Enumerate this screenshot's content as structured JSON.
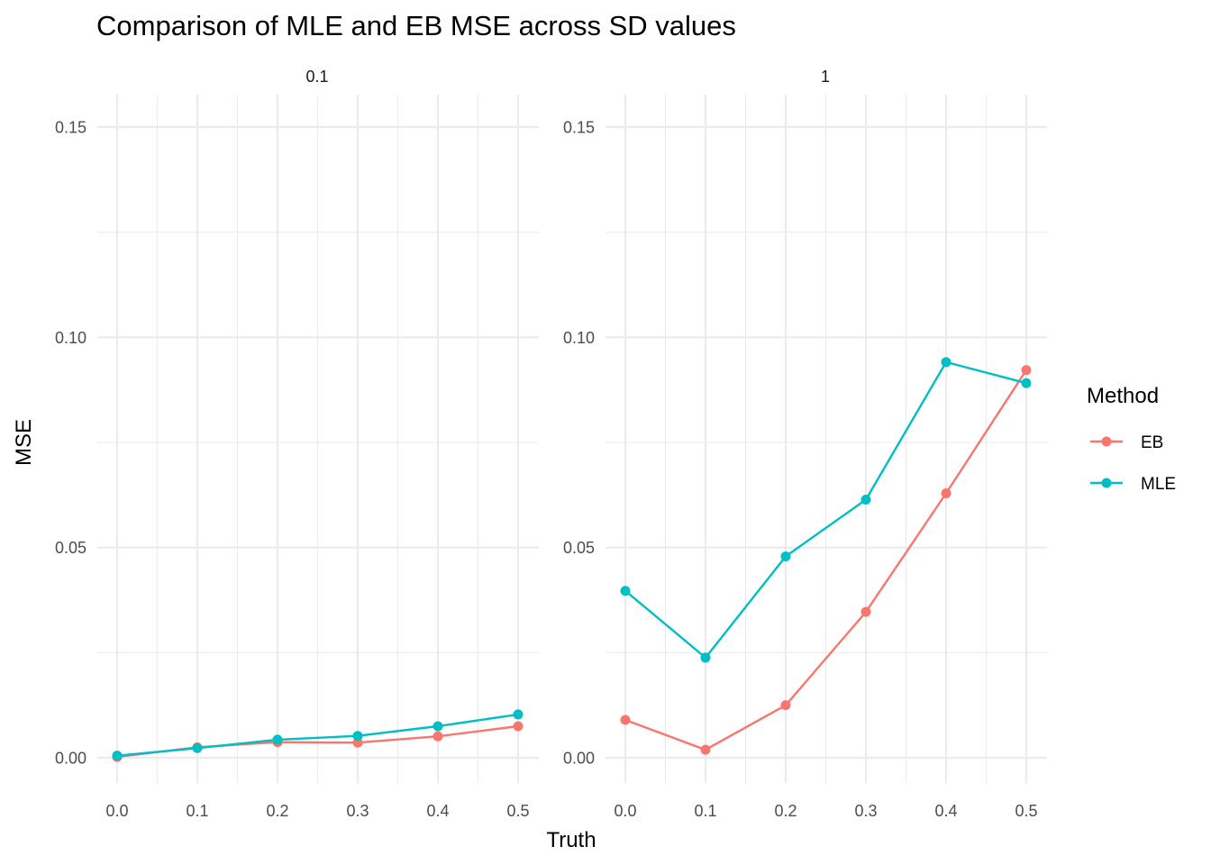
{
  "chart_data": {
    "type": "line",
    "title": "Comparison of MLE and EB MSE across SD values",
    "xlabel": "Truth",
    "ylabel": "MSE",
    "x": [
      0.0,
      0.1,
      0.2,
      0.3,
      0.4,
      0.5
    ],
    "x_tick_labels": [
      "0.0",
      "0.1",
      "0.2",
      "0.3",
      "0.4",
      "0.5"
    ],
    "y_ticks": [
      0.0,
      0.05,
      0.1,
      0.15
    ],
    "y_tick_labels": [
      "0.00",
      "0.05",
      "0.10",
      "0.15"
    ],
    "xlim": [
      0.0,
      0.5
    ],
    "ylim": [
      0.0,
      0.15
    ],
    "grid": true,
    "legend": {
      "title": "Method",
      "position": "right",
      "entries": [
        {
          "name": "EB",
          "color": "#F8766D"
        },
        {
          "name": "MLE",
          "color": "#00BFC4"
        }
      ]
    },
    "panels": [
      {
        "label": "0.1",
        "series": [
          {
            "name": "EB",
            "values": [
              0.0002,
              0.0025,
              0.0037,
              0.0036,
              0.0051,
              0.0075
            ]
          },
          {
            "name": "MLE",
            "values": [
              0.0005,
              0.0023,
              0.0043,
              0.0052,
              0.0075,
              0.0103
            ]
          }
        ]
      },
      {
        "label": "1",
        "series": [
          {
            "name": "EB",
            "values": [
              0.009,
              0.0019,
              0.0125,
              0.0347,
              0.0629,
              0.0922
            ]
          },
          {
            "name": "MLE",
            "values": [
              0.0397,
              0.0238,
              0.0479,
              0.0614,
              0.0941,
              0.0891
            ]
          }
        ]
      }
    ]
  }
}
